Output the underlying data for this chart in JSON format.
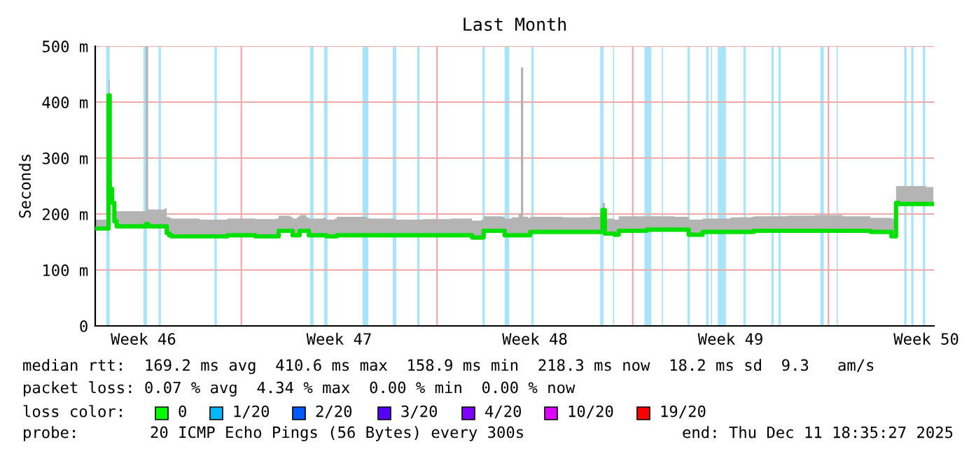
{
  "chart_data": {
    "type": "line",
    "title": "Last Month",
    "ylabel": "Seconds",
    "xlim": [
      "2025-11-11T18:35",
      "2025-12-11T18:35"
    ],
    "xticks": [
      {
        "value": "2025-11-13T12:00",
        "label": "Week 46"
      },
      {
        "value": "2025-11-17T00:00",
        "label": null
      },
      {
        "value": "2025-11-20T12:00",
        "label": "Week 47"
      },
      {
        "value": "2025-11-24T00:00",
        "label": null
      },
      {
        "value": "2025-11-27T12:00",
        "label": "Week 48"
      },
      {
        "value": "2025-12-01T00:00",
        "label": null
      },
      {
        "value": "2025-12-04T12:00",
        "label": "Week 49"
      },
      {
        "value": "2025-12-08T00:00",
        "label": null
      },
      {
        "value": "2025-12-11T12:00",
        "label": "Week 50"
      }
    ],
    "ylim": [
      0,
      500
    ],
    "yticks": [
      0,
      {
        "value": 100,
        "label": "100 m"
      },
      {
        "value": 200,
        "label": "200 m"
      },
      {
        "value": 300,
        "label": "300 m"
      },
      {
        "value": 400,
        "label": "400 m"
      },
      {
        "value": 500,
        "label": "500 m"
      }
    ],
    "grid": true,
    "legend": false,
    "marker": "none",
    "line_style": "solid",
    "x": [
      "2025-11-11T19:00",
      "2025-11-12T05:00",
      "2025-11-12T06:00",
      "2025-11-12T07:00",
      "2025-11-12T09:00",
      "2025-11-12T11:00",
      "2025-11-12T13:00",
      "2025-11-13T12:00",
      "2025-11-13T14:00",
      "2025-11-13T16:00",
      "2025-11-14T06:00",
      "2025-11-14T08:00",
      "2025-11-14T10:00",
      "2025-11-14T12:00",
      "2025-11-15T12:00",
      "2025-11-16T12:00",
      "2025-11-17T12:00",
      "2025-11-18T06:00",
      "2025-11-18T08:00",
      "2025-11-18T18:00",
      "2025-11-18T20:00",
      "2025-11-19T00:00",
      "2025-11-19T02:00",
      "2025-11-19T08:00",
      "2025-11-19T10:00",
      "2025-11-19T22:00",
      "2025-11-20T01:00",
      "2025-11-20T08:00",
      "2025-11-20T10:00",
      "2025-11-21T12:00",
      "2025-11-22T12:00",
      "2025-11-23T12:00",
      "2025-11-24T12:00",
      "2025-11-25T06:00",
      "2025-11-25T14:00",
      "2025-11-25T16:00",
      "2025-11-26T08:00",
      "2025-11-26T10:00",
      "2025-11-26T16:00",
      "2025-11-26T22:00",
      "2025-11-27T00:00",
      "2025-11-27T02:00",
      "2025-11-27T06:00",
      "2025-11-27T08:00",
      "2025-11-28T12:00",
      "2025-11-29T12:00",
      "2025-11-29T20:00",
      "2025-11-29T22:00",
      "2025-11-30T00:00",
      "2025-11-30T08:00",
      "2025-11-30T12:00",
      "2025-12-01T12:00",
      "2025-12-02T12:00",
      "2025-12-02T22:00",
      "2025-12-03T00:00",
      "2025-12-03T12:00",
      "2025-12-04T12:00",
      "2025-12-05T06:00",
      "2025-12-05T08:00",
      "2025-12-06T12:00",
      "2025-12-07T12:00",
      "2025-12-08T12:00",
      "2025-12-09T12:00",
      "2025-12-10T06:00",
      "2025-12-10T10:00",
      "2025-12-10T12:00",
      "2025-12-11T12:00",
      "2025-12-11T18:00"
    ],
    "series": [
      {
        "color": "#00e000",
        "values": [
          174,
          174,
          412,
          245,
          220,
          187,
          178,
          178,
          182,
          178,
          178,
          166,
          162,
          160,
          160,
          162,
          160,
          160,
          170,
          170,
          162,
          162,
          170,
          170,
          162,
          162,
          160,
          160,
          162,
          162,
          162,
          162,
          162,
          158,
          158,
          170,
          170,
          162,
          162,
          162,
          162,
          162,
          162,
          168,
          168,
          168,
          168,
          207,
          165,
          163,
          170,
          172,
          172,
          172,
          163,
          168,
          168,
          168,
          170,
          170,
          170,
          170,
          168,
          160,
          220,
          218,
          218,
          218
        ],
        "lower": [
          174,
          174,
          412,
          245,
          220,
          187,
          178,
          178,
          182,
          178,
          178,
          166,
          162,
          160,
          160,
          162,
          160,
          160,
          170,
          170,
          162,
          162,
          170,
          170,
          162,
          162,
          160,
          160,
          162,
          162,
          162,
          162,
          162,
          158,
          158,
          170,
          170,
          162,
          162,
          162,
          162,
          162,
          162,
          168,
          168,
          168,
          168,
          207,
          165,
          163,
          170,
          172,
          172,
          172,
          163,
          168,
          168,
          168,
          170,
          170,
          170,
          170,
          168,
          160,
          220,
          218,
          218,
          218
        ],
        "upper": [
          190,
          195,
          440,
          260,
          235,
          205,
          205,
          205,
          500,
          208,
          210,
          195,
          193,
          192,
          190,
          192,
          191,
          192,
          197,
          195,
          192,
          195,
          198,
          194,
          192,
          193,
          190,
          192,
          195,
          192,
          190,
          191,
          192,
          188,
          190,
          196,
          195,
          192,
          194,
          200,
          462,
          195,
          193,
          195,
          194,
          195,
          198,
          220,
          192,
          190,
          196,
          196,
          195,
          195,
          190,
          192,
          194,
          195,
          196,
          197,
          198,
          196,
          193,
          192,
          250,
          250,
          248,
          249
        ]
      }
    ],
    "bands": [
      {
        "axis": "x",
        "from": "2025-11-12T04:00",
        "to": "2025-11-12T07:00",
        "color": "#a8e4fa"
      },
      {
        "axis": "x",
        "from": "2025-11-13T12:00",
        "to": "2025-11-13T15:00",
        "color": "#a8e4fa"
      },
      {
        "axis": "x",
        "from": "2025-11-14T01:00",
        "to": "2025-11-14T03:00",
        "color": "#a8e4fa"
      },
      {
        "axis": "x",
        "from": "2025-11-16T01:00",
        "to": "2025-11-16T03:00",
        "color": "#a8e4fa"
      },
      {
        "axis": "x",
        "from": "2025-11-19T11:00",
        "to": "2025-11-19T14:00",
        "color": "#a8e4fa"
      },
      {
        "axis": "x",
        "from": "2025-11-19T23:00",
        "to": "2025-11-20T02:00",
        "color": "#a8e4fa"
      },
      {
        "axis": "x",
        "from": "2025-11-21T08:00",
        "to": "2025-11-21T13:00",
        "color": "#a8e4fa"
      },
      {
        "axis": "x",
        "from": "2025-11-22T10:00",
        "to": "2025-11-22T13:00",
        "color": "#a8e4fa"
      },
      {
        "axis": "x",
        "from": "2025-11-23T07:00",
        "to": "2025-11-23T09:00",
        "color": "#a8e4fa"
      },
      {
        "axis": "x",
        "from": "2025-11-25T15:00",
        "to": "2025-11-25T17:00",
        "color": "#a8e4fa"
      },
      {
        "axis": "x",
        "from": "2025-11-26T10:00",
        "to": "2025-11-26T14:00",
        "color": "#a8e4fa"
      },
      {
        "axis": "x",
        "from": "2025-11-27T09:00",
        "to": "2025-11-27T11:00",
        "color": "#a8e4fa"
      },
      {
        "axis": "x",
        "from": "2025-11-29T20:00",
        "to": "2025-11-29T23:00",
        "color": "#a8e4fa"
      },
      {
        "axis": "x",
        "from": "2025-11-30T07:00",
        "to": "2025-11-30T08:00",
        "color": "#a8e4fa"
      },
      {
        "axis": "x",
        "from": "2025-12-01T10:00",
        "to": "2025-12-01T16:00",
        "color": "#a8e4fa"
      },
      {
        "axis": "x",
        "from": "2025-12-02T01:00",
        "to": "2025-12-02T02:00",
        "color": "#a8e4fa"
      },
      {
        "axis": "x",
        "from": "2025-12-02T23:00",
        "to": "2025-12-03T01:00",
        "color": "#a8e4fa"
      },
      {
        "axis": "x",
        "from": "2025-12-03T15:00",
        "to": "2025-12-03T17:00",
        "color": "#a8e4fa"
      },
      {
        "axis": "x",
        "from": "2025-12-03T19:00",
        "to": "2025-12-03T20:00",
        "color": "#a8e4fa"
      },
      {
        "axis": "x",
        "from": "2025-12-04T01:00",
        "to": "2025-12-04T08:00",
        "color": "#a8e4fa"
      },
      {
        "axis": "x",
        "from": "2025-12-04T23:00",
        "to": "2025-12-05T01:00",
        "color": "#a8e4fa"
      },
      {
        "axis": "x",
        "from": "2025-12-05T23:00",
        "to": "2025-12-06T01:00",
        "color": "#a8e4fa"
      },
      {
        "axis": "x",
        "from": "2025-12-06T05:00",
        "to": "2025-12-06T07:00",
        "color": "#a8e4fa"
      },
      {
        "axis": "x",
        "from": "2025-12-07T17:00",
        "to": "2025-12-07T20:00",
        "color": "#a8e4fa"
      },
      {
        "axis": "x",
        "from": "2025-12-08T07:00",
        "to": "2025-12-08T08:00",
        "color": "#a8e4fa"
      },
      {
        "axis": "x",
        "from": "2025-12-10T17:00",
        "to": "2025-12-10T19:00",
        "color": "#a8e4fa"
      },
      {
        "axis": "x",
        "from": "2025-12-10T23:00",
        "to": "2025-12-11T01:00",
        "color": "#a8e4fa"
      },
      {
        "axis": "x",
        "from": "2025-12-11T09:00",
        "to": "2025-12-11T11:00",
        "color": "#a8e4fa"
      }
    ],
    "annotations": [
      "median rtt:  169.2 ms avg  410.6 ms max  158.9 ms min  218.3 ms now  18.2 ms sd  9.3   am/s",
      "packet loss: 0.07 % avg  4.34 % max  0.00 % min  0.00 % now",
      "loss color:",
      "0",
      "1/20",
      "2/20",
      "3/20",
      "4/20",
      "10/20",
      "19/20",
      "probe:",
      "20 ICMP Echo Pings (56 Bytes) every 300s",
      "end: Thu Dec 11 18:35:27 2025"
    ]
  }
}
